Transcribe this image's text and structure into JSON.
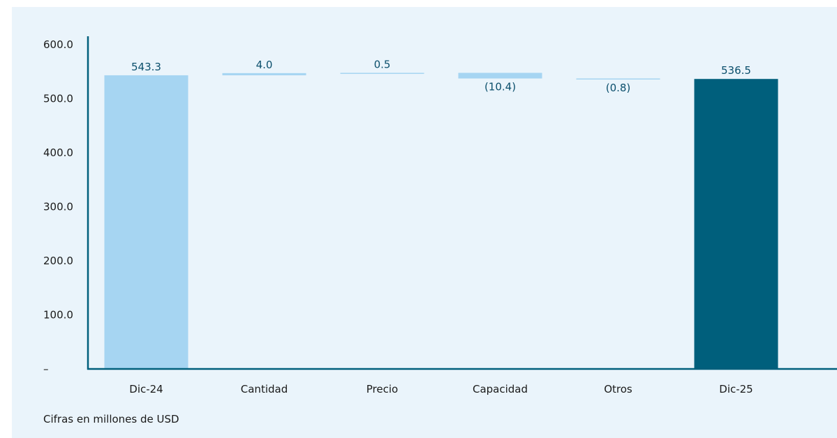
{
  "chart_data": {
    "type": "bar",
    "subtype": "waterfall",
    "categories": [
      "Dic-24",
      "Cantidad",
      "Precio",
      "Capacidad",
      "Otros",
      "Dic-25"
    ],
    "values": [
      543.3,
      4.0,
      0.5,
      -10.4,
      -0.8,
      536.5
    ],
    "kinds": [
      "total",
      "delta",
      "delta",
      "delta",
      "delta",
      "total"
    ],
    "data_labels": [
      "543.3",
      "4.0",
      "0.5",
      "(10.4)",
      "(0.8)",
      "536.5"
    ],
    "yticks": [
      "–",
      "100.0",
      "200.0",
      "300.0",
      "400.0",
      "500.0",
      "600.0"
    ],
    "ylim": [
      0,
      600
    ],
    "grid": false,
    "legend": "none",
    "colors": {
      "start_total": "#a6d5f2",
      "delta": "#a6d5f2",
      "end_total": "#005f7c",
      "axis": "#005f7c",
      "label": "#0b4f6c",
      "background": "#eaf4fb"
    }
  },
  "footnote": "Cifras en millones de USD"
}
